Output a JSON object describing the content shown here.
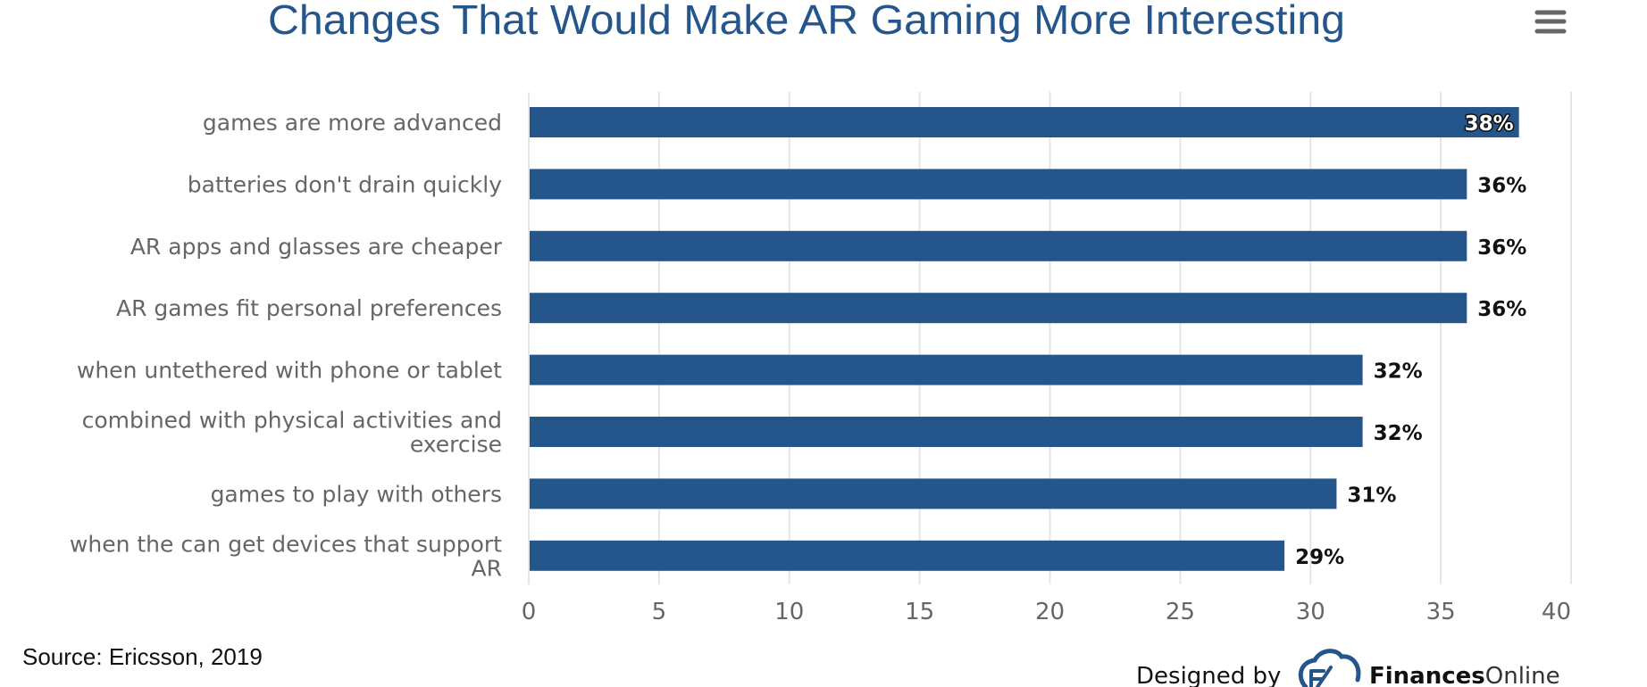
{
  "chart_data": {
    "type": "bar",
    "orientation": "horizontal",
    "title": "Changes That Would Make AR Gaming More Interesting",
    "categories": [
      [
        "games are more advanced"
      ],
      [
        "batteries don't drain quickly"
      ],
      [
        "AR apps and glasses are cheaper"
      ],
      [
        "AR games fit personal preferences"
      ],
      [
        "when untethered with phone or tablet"
      ],
      [
        "combined with physical activities and",
        "exercise"
      ],
      [
        "games to play with others"
      ],
      [
        "when the can get devices that support",
        "AR"
      ]
    ],
    "values": [
      38,
      36,
      36,
      36,
      32,
      32,
      31,
      29
    ],
    "data_labels": [
      "38%",
      "36%",
      "36%",
      "36%",
      "32%",
      "32%",
      "31%",
      "29%"
    ],
    "xlabel": "",
    "ylabel": "",
    "xlim": [
      0,
      40
    ],
    "xticks": [
      0,
      5,
      10,
      15,
      20,
      25,
      30,
      35,
      40
    ],
    "xtick_labels": [
      "0",
      "5",
      "10",
      "15",
      "20",
      "25",
      "30",
      "35",
      "40"
    ],
    "grid": true,
    "legend": "none",
    "bar_color": "#24568c"
  },
  "header": {
    "title": "Changes That Would Make AR Gaming More Interesting",
    "menu_icon": "hamburger-menu-icon"
  },
  "footer": {
    "source": "Source: Ericsson, 2019",
    "designed_by": "Designed by",
    "brand_bold": "Finances",
    "brand_light": "Online",
    "logo_icon": "financesonline-cloud-logo-icon"
  },
  "colors": {
    "title": "#24568c",
    "bar": "#24568c",
    "label_text": "#666666",
    "data_label_text": "#111111",
    "grid": "#e6e6e6"
  }
}
